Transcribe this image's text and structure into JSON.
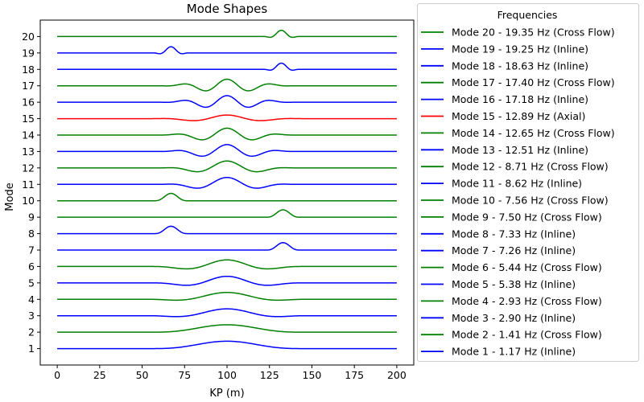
{
  "chart_data": {
    "type": "line",
    "title": "Mode Shapes",
    "xlabel": "KP (m)",
    "ylabel": "Mode",
    "xlim": [
      -10,
      210
    ],
    "ylim": [
      0.0,
      21.0
    ],
    "xticks": [
      0,
      25,
      50,
      75,
      100,
      125,
      150,
      175,
      200
    ],
    "yticks": [
      1,
      2,
      3,
      4,
      5,
      6,
      7,
      8,
      9,
      10,
      11,
      12,
      13,
      14,
      15,
      16,
      17,
      18,
      19,
      20
    ],
    "legend": {
      "title": "Frequencies",
      "placement": "outside-right"
    },
    "colors": {
      "Inline": "#0000ff",
      "Cross Flow": "#008000",
      "Axial": "#ff0000"
    },
    "series": [
      {
        "name": "Mode 20 - 19.35 Hz (Cross Flow)",
        "offset": 20,
        "direction": "Cross Flow",
        "shape": {
          "center": 132,
          "width": 10,
          "waves": 1,
          "amplitude": 0.38
        }
      },
      {
        "name": "Mode 19 - 19.25 Hz (Inline)",
        "offset": 19,
        "direction": "Inline",
        "shape": {
          "center": 67,
          "width": 10,
          "waves": 1,
          "amplitude": 0.38
        }
      },
      {
        "name": "Mode 18 - 18.63 Hz (Inline)",
        "offset": 18,
        "direction": "Inline",
        "shape": {
          "center": 132,
          "width": 10,
          "waves": 1,
          "amplitude": 0.38
        }
      },
      {
        "name": "Mode 17 - 17.40 Hz (Cross Flow)",
        "offset": 17,
        "direction": "Cross Flow",
        "shape": {
          "center": 100,
          "width": 40,
          "waves": 3,
          "amplitude": 0.4
        }
      },
      {
        "name": "Mode 16 - 17.18 Hz (Inline)",
        "offset": 16,
        "direction": "Inline",
        "shape": {
          "center": 100,
          "width": 40,
          "waves": 3,
          "amplitude": 0.4
        }
      },
      {
        "name": "Mode 15 - 12.89 Hz (Axial)",
        "offset": 15,
        "direction": "Axial",
        "shape": {
          "center": 100,
          "width": 45,
          "waves": 2,
          "amplitude": 0.22
        }
      },
      {
        "name": "Mode 14 - 12.65 Hz (Cross Flow)",
        "offset": 14,
        "direction": "Cross Flow",
        "shape": {
          "center": 100,
          "width": 40,
          "waves": 2.5,
          "amplitude": 0.42
        }
      },
      {
        "name": "Mode 13 - 12.51 Hz (Inline)",
        "offset": 13,
        "direction": "Inline",
        "shape": {
          "center": 100,
          "width": 40,
          "waves": 2.5,
          "amplitude": 0.42
        }
      },
      {
        "name": "Mode 12 - 8.71 Hz (Cross Flow)",
        "offset": 12,
        "direction": "Cross Flow",
        "shape": {
          "center": 100,
          "width": 40,
          "waves": 2,
          "amplitude": 0.42
        }
      },
      {
        "name": "Mode 11 - 8.62 Hz (Inline)",
        "offset": 11,
        "direction": "Inline",
        "shape": {
          "center": 100,
          "width": 40,
          "waves": 2,
          "amplitude": 0.42
        }
      },
      {
        "name": "Mode 10 - 7.56 Hz (Cross Flow)",
        "offset": 10,
        "direction": "Cross Flow",
        "shape": {
          "center": 67,
          "width": 10,
          "waves": 0.5,
          "amplitude": 0.45
        }
      },
      {
        "name": "Mode 9 - 7.50 Hz (Cross Flow)",
        "offset": 9,
        "direction": "Cross Flow",
        "shape": {
          "center": 133,
          "width": 10,
          "waves": 0.5,
          "amplitude": 0.45
        }
      },
      {
        "name": "Mode 8 - 7.33 Hz (Inline)",
        "offset": 8,
        "direction": "Inline",
        "shape": {
          "center": 67,
          "width": 10,
          "waves": 0.5,
          "amplitude": 0.45
        }
      },
      {
        "name": "Mode 7 - 7.26 Hz (Inline)",
        "offset": 7,
        "direction": "Inline",
        "shape": {
          "center": 133,
          "width": 10,
          "waves": 0.5,
          "amplitude": 0.45
        }
      },
      {
        "name": "Mode 6 - 5.44 Hz (Cross Flow)",
        "offset": 6,
        "direction": "Cross Flow",
        "shape": {
          "center": 100,
          "width": 45,
          "waves": 1.5,
          "amplitude": 0.4
        }
      },
      {
        "name": "Mode 5 - 5.38 Hz (Inline)",
        "offset": 5,
        "direction": "Inline",
        "shape": {
          "center": 100,
          "width": 45,
          "waves": 1.5,
          "amplitude": 0.4
        }
      },
      {
        "name": "Mode 4 - 2.93 Hz (Cross Flow)",
        "offset": 4,
        "direction": "Cross Flow",
        "shape": {
          "center": 100,
          "width": 45,
          "waves": 1,
          "amplitude": 0.42
        }
      },
      {
        "name": "Mode 3 - 2.90 Hz (Inline)",
        "offset": 3,
        "direction": "Inline",
        "shape": {
          "center": 100,
          "width": 45,
          "waves": 1,
          "amplitude": 0.42
        }
      },
      {
        "name": "Mode 2 - 1.41 Hz (Cross Flow)",
        "offset": 2,
        "direction": "Cross Flow",
        "shape": {
          "center": 100,
          "width": 45,
          "waves": 0.5,
          "amplitude": 0.45
        }
      },
      {
        "name": "Mode 1 - 1.17 Hz (Inline)",
        "offset": 1,
        "direction": "Inline",
        "shape": {
          "center": 100,
          "width": 45,
          "waves": 0.5,
          "amplitude": 0.45
        }
      }
    ]
  }
}
